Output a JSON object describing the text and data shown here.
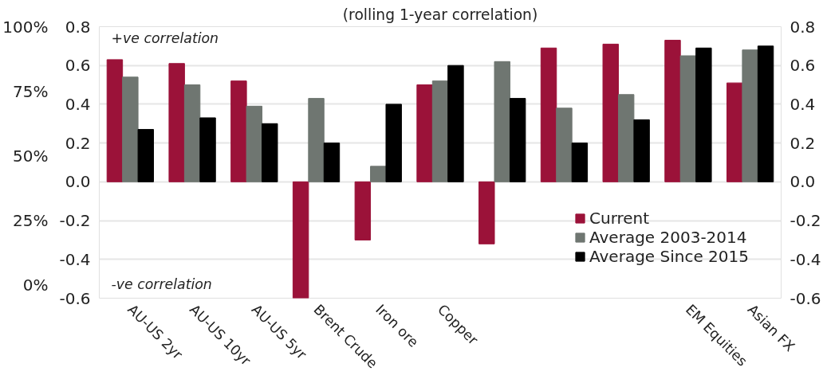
{
  "chart_data": {
    "type": "bar",
    "subtitle": "(rolling 1-year correlation)",
    "categories": [
      "AU-US 2yr",
      "AU-US 10yr",
      "AU-US 5yr",
      "Brent Crude",
      "Iron ore",
      "Copper",
      null,
      null,
      null,
      "EM Equities",
      "Asian FX"
    ],
    "series": [
      {
        "name": "Current",
        "color": "#9b1239",
        "values": [
          0.63,
          0.61,
          0.52,
          -0.6,
          -0.3,
          0.5,
          -0.32,
          0.69,
          0.71,
          0.73,
          0.51
        ]
      },
      {
        "name": "Average 2003-2014",
        "color": "#6f7671",
        "values": [
          0.54,
          0.5,
          0.39,
          0.43,
          0.08,
          0.52,
          0.62,
          0.38,
          0.45,
          0.65,
          0.68
        ]
      },
      {
        "name": "Average Since 2015",
        "color": "#000000",
        "values": [
          0.27,
          0.33,
          0.3,
          0.2,
          0.4,
          0.6,
          0.43,
          0.2,
          0.32,
          0.69,
          0.7
        ]
      }
    ],
    "ylim": [
      -0.6,
      0.8
    ],
    "yticks": [
      {
        "value": -0.6,
        "label": "-0.6"
      },
      {
        "value": -0.4,
        "label": "-0.4"
      },
      {
        "value": -0.2,
        "label": "-0.2"
      },
      {
        "value": 0,
        "label": "0.0"
      },
      {
        "value": 0.2,
        "label": "0.2"
      },
      {
        "value": 0.4,
        "label": "0.4"
      },
      {
        "value": 0.6,
        "label": "0.6"
      },
      {
        "value": 0.8,
        "label": "0.8"
      }
    ],
    "y2lim": [
      -0.6,
      0.8
    ],
    "y2ticks": [
      {
        "value": -0.6,
        "label": "-0.6"
      },
      {
        "value": -0.4,
        "label": "-0.4"
      },
      {
        "value": -0.2,
        "label": "-0.2"
      },
      {
        "value": 0,
        "label": "0.0"
      },
      {
        "value": 0.2,
        "label": "0.2"
      },
      {
        "value": 0.4,
        "label": "0.4"
      },
      {
        "value": 0.6,
        "label": "0.6"
      },
      {
        "value": 0.8,
        "label": "0.8"
      }
    ],
    "y3lim": [
      -5,
      100
    ],
    "y3ticks": [
      {
        "value": 0,
        "label": "0%"
      },
      {
        "value": 25,
        "label": "25%"
      },
      {
        "value": 50,
        "label": "50%"
      },
      {
        "value": 75,
        "label": "75%"
      },
      {
        "value": 100,
        "label": "100%"
      }
    ],
    "annotations": [
      "+ve correlation",
      "-ve correlation"
    ],
    "grid": "y",
    "legend": "bottom right"
  }
}
